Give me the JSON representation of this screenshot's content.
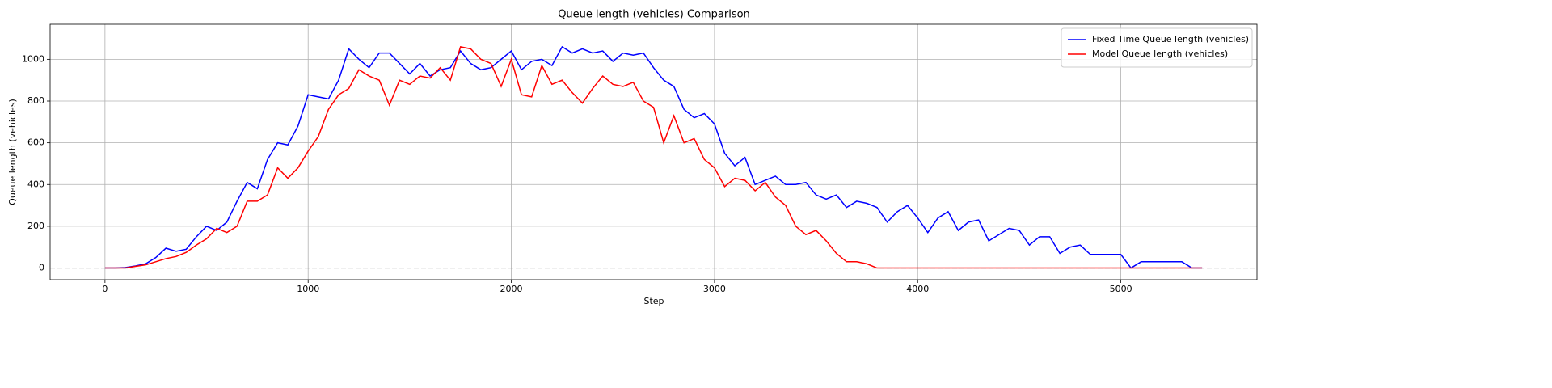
{
  "chart_data": {
    "type": "line",
    "title": "Queue length (vehicles) Comparison",
    "x_label": "Step",
    "y_label": "Queue length (vehicles)",
    "x": [
      0,
      50,
      100,
      150,
      200,
      250,
      300,
      350,
      400,
      450,
      500,
      550,
      600,
      650,
      700,
      750,
      800,
      850,
      900,
      950,
      1000,
      1050,
      1100,
      1150,
      1200,
      1250,
      1300,
      1350,
      1400,
      1450,
      1500,
      1550,
      1600,
      1650,
      1700,
      1750,
      1800,
      1850,
      1900,
      1950,
      2000,
      2050,
      2100,
      2150,
      2200,
      2250,
      2300,
      2350,
      2400,
      2450,
      2500,
      2550,
      2600,
      2650,
      2700,
      2750,
      2800,
      2850,
      2900,
      2950,
      3000,
      3050,
      3100,
      3150,
      3200,
      3250,
      3300,
      3350,
      3400,
      3450,
      3500,
      3550,
      3600,
      3650,
      3700,
      3750,
      3800,
      3850,
      3900,
      3950,
      4000,
      4050,
      4100,
      4150,
      4200,
      4250,
      4300,
      4350,
      4400,
      4450,
      4500,
      4550,
      4600,
      4650,
      4700,
      4750,
      4800,
      4850,
      4900,
      4950,
      5000,
      5050,
      5100,
      5150,
      5200,
      5250,
      5300,
      5350,
      5400
    ],
    "series": [
      {
        "name": "Fixed Time Queue length (vehicles)",
        "color": "#0000ff",
        "values": [
          0,
          0,
          2,
          10,
          20,
          50,
          95,
          80,
          90,
          150,
          200,
          180,
          220,
          320,
          410,
          380,
          520,
          600,
          590,
          680,
          830,
          820,
          810,
          900,
          1050,
          1000,
          960,
          1030,
          1030,
          980,
          930,
          980,
          920,
          950,
          960,
          1040,
          980,
          950,
          960,
          1000,
          1040,
          950,
          990,
          1000,
          970,
          1060,
          1030,
          1050,
          1030,
          1040,
          990,
          1030,
          1020,
          1030,
          960,
          900,
          870,
          760,
          720,
          740,
          690,
          550,
          490,
          530,
          400,
          420,
          440,
          400,
          400,
          410,
          350,
          330,
          350,
          290,
          320,
          310,
          290,
          220,
          270,
          300,
          240,
          170,
          240,
          270,
          180,
          220,
          230,
          130,
          160,
          190,
          180,
          110,
          150,
          150,
          70,
          100,
          110,
          65,
          65,
          65,
          65,
          0,
          30,
          30,
          30,
          30,
          30,
          0,
          0
        ]
      },
      {
        "name": "Model Queue length (vehicles)",
        "color": "#ff0000",
        "values": [
          0,
          0,
          0,
          8,
          15,
          30,
          45,
          55,
          75,
          110,
          140,
          190,
          170,
          200,
          320,
          320,
          350,
          480,
          430,
          480,
          560,
          630,
          760,
          830,
          860,
          950,
          920,
          900,
          780,
          900,
          880,
          920,
          910,
          960,
          900,
          1060,
          1050,
          1000,
          980,
          870,
          1000,
          830,
          820,
          970,
          880,
          900,
          840,
          790,
          860,
          920,
          880,
          870,
          890,
          800,
          770,
          600,
          730,
          600,
          620,
          520,
          480,
          390,
          430,
          420,
          370,
          410,
          340,
          300,
          200,
          160,
          180,
          130,
          70,
          30,
          30,
          20,
          0,
          0,
          0,
          0,
          0,
          0,
          0,
          0,
          0,
          0,
          0,
          0,
          0,
          0,
          0,
          0,
          0,
          0,
          0,
          0,
          0,
          0,
          0,
          0,
          0,
          0,
          0,
          0,
          0,
          0,
          0,
          0,
          0
        ]
      }
    ],
    "xlim": [
      -270,
      5670
    ],
    "ylim": [
      -56,
      1168
    ],
    "xticks": [
      0,
      1000,
      2000,
      3000,
      4000,
      5000
    ],
    "yticks": [
      0,
      200,
      400,
      600,
      800,
      1000
    ],
    "hline": 0,
    "grid": true,
    "legend": "upper right"
  }
}
